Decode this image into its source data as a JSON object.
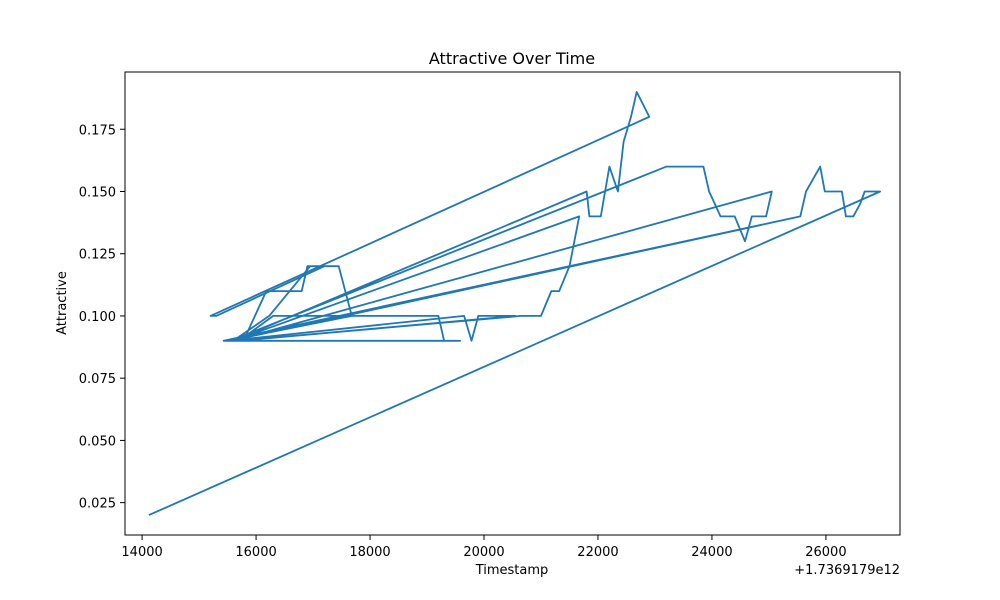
{
  "chart_data": {
    "type": "line",
    "title": "Attractive Over Time",
    "xlabel": "Timestamp",
    "ylabel": "Attractive",
    "x_offset_label": "+1.7369179e12",
    "xlim": [
      13700,
      27300
    ],
    "ylim": [
      0.012,
      0.198
    ],
    "x_ticks": [
      14000,
      16000,
      18000,
      20000,
      22000,
      24000,
      26000
    ],
    "x_tick_labels": [
      "14000",
      "16000",
      "18000",
      "20000",
      "22000",
      "24000",
      "26000"
    ],
    "y_ticks": [
      0.025,
      0.05,
      0.075,
      0.1,
      0.125,
      0.15,
      0.175
    ],
    "y_tick_labels": [
      "0.025",
      "0.050",
      "0.075",
      "0.100",
      "0.125",
      "0.150",
      "0.175"
    ],
    "grid": false,
    "series_color": "#1f77b4",
    "series": [
      {
        "x": [
          14120,
          26950,
          26680,
          26600,
          26480,
          26350,
          26280,
          25980,
          25900,
          25650,
          25550,
          15430,
          15780,
          16180,
          16300,
          16800,
          16900,
          17200,
          15300,
          15230,
          15200,
          22900,
          22680,
          22580,
          22450,
          22350,
          22200,
          22050,
          21850,
          21800,
          15600,
          21670,
          21500,
          21320,
          21180,
          21000,
          20650,
          15650,
          19580,
          19300,
          19200,
          16300,
          15700,
          20550,
          19900,
          19780,
          19650,
          15500,
          17680,
          17450,
          16950,
          16230,
          15600,
          25050,
          24950,
          24700,
          24580,
          24400,
          24150,
          24050,
          23950,
          23850,
          23200,
          15550,
          25550
        ],
        "y": [
          0.02,
          0.15,
          0.15,
          0.145,
          0.14,
          0.14,
          0.15,
          0.15,
          0.16,
          0.15,
          0.14,
          0.09,
          0.09,
          0.11,
          0.11,
          0.11,
          0.12,
          0.12,
          0.1,
          0.1,
          0.1,
          0.18,
          0.19,
          0.18,
          0.17,
          0.15,
          0.16,
          0.14,
          0.14,
          0.15,
          0.09,
          0.14,
          0.12,
          0.11,
          0.11,
          0.1,
          0.1,
          0.09,
          0.09,
          0.09,
          0.1,
          0.1,
          0.09,
          0.1,
          0.1,
          0.09,
          0.1,
          0.09,
          0.1,
          0.12,
          0.12,
          0.1,
          0.09,
          0.15,
          0.14,
          0.14,
          0.13,
          0.14,
          0.14,
          0.145,
          0.15,
          0.16,
          0.16,
          0.09,
          0.14
        ]
      }
    ]
  }
}
